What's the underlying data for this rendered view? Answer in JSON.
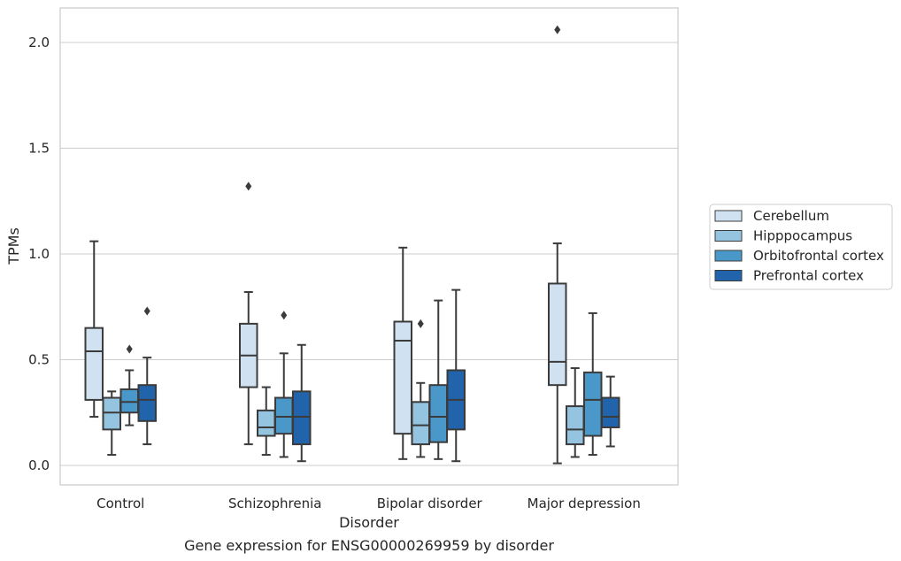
{
  "chart_data": {
    "type": "box",
    "caption": "Gene expression for ENSG00000269959 by disorder",
    "xlabel": "Disorder",
    "ylabel": "TPMs",
    "ylim": [
      -0.09,
      2.17
    ],
    "yticks": [
      0.0,
      0.5,
      1.0,
      1.5,
      2.0
    ],
    "ytick_labels": [
      "0.0",
      "0.5",
      "1.0",
      "1.5",
      "2.0"
    ],
    "grid": "horizontal",
    "legend_position": "right",
    "categories": [
      "Control",
      "Schizophrenia",
      "Bipolar disorder",
      "Major depression"
    ],
    "series": [
      {
        "name": "Cerebellum",
        "color": "#d0e1f2",
        "boxes": [
          {
            "whislo": 0.23,
            "q1": 0.31,
            "med": 0.54,
            "q3": 0.65,
            "whishi": 1.06,
            "fliers": []
          },
          {
            "whislo": 0.1,
            "q1": 0.37,
            "med": 0.52,
            "q3": 0.67,
            "whishi": 0.82,
            "fliers": [
              1.32
            ]
          },
          {
            "whislo": 0.03,
            "q1": 0.15,
            "med": 0.59,
            "q3": 0.68,
            "whishi": 1.03,
            "fliers": []
          },
          {
            "whislo": 0.01,
            "q1": 0.38,
            "med": 0.49,
            "q3": 0.86,
            "whishi": 1.05,
            "fliers": [
              2.06
            ]
          }
        ]
      },
      {
        "name": "Hipppocampus",
        "color": "#94c4df",
        "boxes": [
          {
            "whislo": 0.05,
            "q1": 0.17,
            "med": 0.25,
            "q3": 0.32,
            "whishi": 0.35,
            "fliers": []
          },
          {
            "whislo": 0.05,
            "q1": 0.14,
            "med": 0.18,
            "q3": 0.26,
            "whishi": 0.37,
            "fliers": []
          },
          {
            "whislo": 0.04,
            "q1": 0.1,
            "med": 0.19,
            "q3": 0.3,
            "whishi": 0.39,
            "fliers": [
              0.67
            ]
          },
          {
            "whislo": 0.04,
            "q1": 0.1,
            "med": 0.17,
            "q3": 0.28,
            "whishi": 0.46,
            "fliers": []
          }
        ]
      },
      {
        "name": "Orbitofrontal cortex",
        "color": "#4a98c9",
        "boxes": [
          {
            "whislo": 0.19,
            "q1": 0.25,
            "med": 0.3,
            "q3": 0.36,
            "whishi": 0.45,
            "fliers": [
              0.55
            ]
          },
          {
            "whislo": 0.04,
            "q1": 0.15,
            "med": 0.23,
            "q3": 0.32,
            "whishi": 0.53,
            "fliers": [
              0.71
            ]
          },
          {
            "whislo": 0.03,
            "q1": 0.11,
            "med": 0.23,
            "q3": 0.38,
            "whishi": 0.78,
            "fliers": []
          },
          {
            "whislo": 0.05,
            "q1": 0.14,
            "med": 0.31,
            "q3": 0.44,
            "whishi": 0.72,
            "fliers": []
          }
        ]
      },
      {
        "name": "Prefrontal cortex",
        "color": "#2164ab",
        "boxes": [
          {
            "whislo": 0.1,
            "q1": 0.21,
            "med": 0.31,
            "q3": 0.38,
            "whishi": 0.51,
            "fliers": [
              0.73
            ]
          },
          {
            "whislo": 0.02,
            "q1": 0.1,
            "med": 0.23,
            "q3": 0.35,
            "whishi": 0.57,
            "fliers": []
          },
          {
            "whislo": 0.02,
            "q1": 0.17,
            "med": 0.31,
            "q3": 0.45,
            "whishi": 0.83,
            "fliers": []
          },
          {
            "whislo": 0.09,
            "q1": 0.18,
            "med": 0.23,
            "q3": 0.32,
            "whishi": 0.42,
            "fliers": []
          }
        ]
      }
    ]
  }
}
